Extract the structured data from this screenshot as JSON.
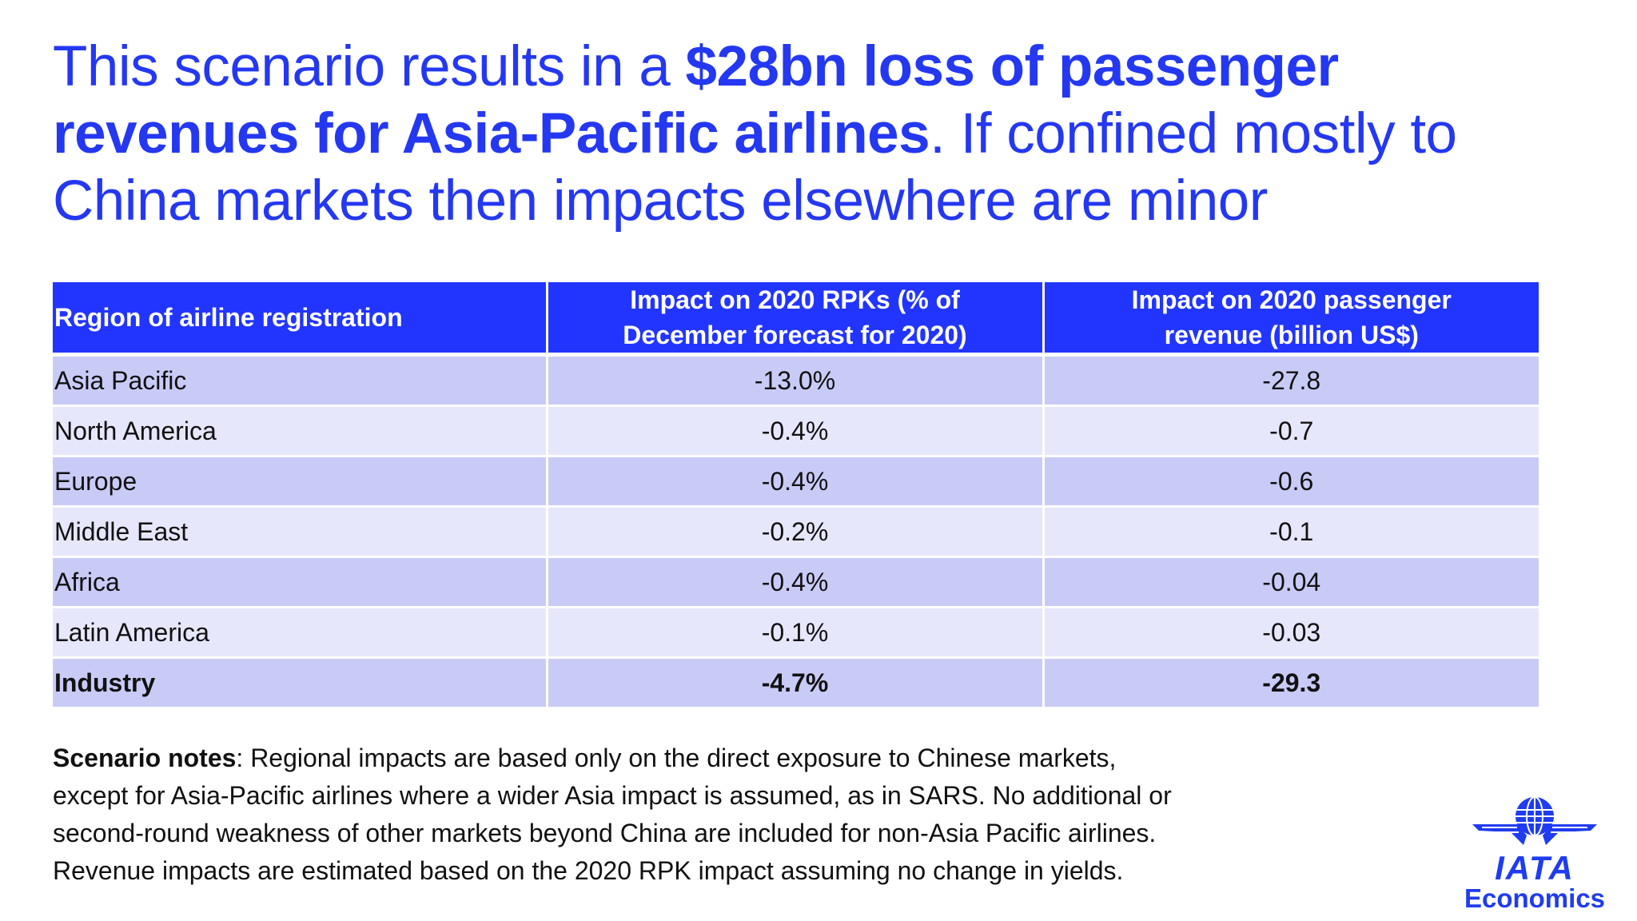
{
  "title": {
    "line1_normal": "This scenario results in a ",
    "line1_bold": "$28bn loss of passenger",
    "line2_bold": "revenues for Asia-Pacific airlines",
    "line2_normal": ". If confined mostly to",
    "line3_normal": "China markets then impacts elsewhere are minor"
  },
  "table": {
    "headers": [
      "Region of airline registration",
      "Impact on 2020 RPKs (% of December forecast for 2020)",
      "Impact on 2020 passenger revenue (billion US$)"
    ],
    "header_lines": {
      "h1a": "Impact on 2020 RPKs (% of",
      "h1b": "December forecast for 2020)",
      "h2a": "Impact on 2020 passenger",
      "h2b": "revenue (billion US$)"
    },
    "rows": [
      {
        "region": "Asia Pacific",
        "rpk": "-13.0%",
        "revenue": "-27.8"
      },
      {
        "region": "North America",
        "rpk": "-0.4%",
        "revenue": "-0.7"
      },
      {
        "region": "Europe",
        "rpk": "-0.4%",
        "revenue": "-0.6"
      },
      {
        "region": "Middle East",
        "rpk": "-0.2%",
        "revenue": "-0.1"
      },
      {
        "region": "Africa",
        "rpk": "-0.4%",
        "revenue": "-0.04"
      },
      {
        "region": "Latin America",
        "rpk": "-0.1%",
        "revenue": "-0.03"
      },
      {
        "region": "Industry",
        "rpk": "-4.7%",
        "revenue": "-29.3"
      }
    ]
  },
  "notes": {
    "label": "Scenario notes",
    "line1": ": Regional impacts are based only on the direct exposure to Chinese markets,",
    "line2": "except for Asia-Pacific airlines where a wider Asia impact is assumed, as in SARS. No additional or",
    "line3": "second-round weakness of other markets beyond China are included for non-Asia Pacific airlines.",
    "line4": "Revenue impacts are estimated based on the 2020 RPK impact assuming no change in yields."
  },
  "logo": {
    "name": "IATA",
    "sub": "Economics",
    "color": "#1f3cf0",
    "icon": "globe-wings-icon"
  }
}
